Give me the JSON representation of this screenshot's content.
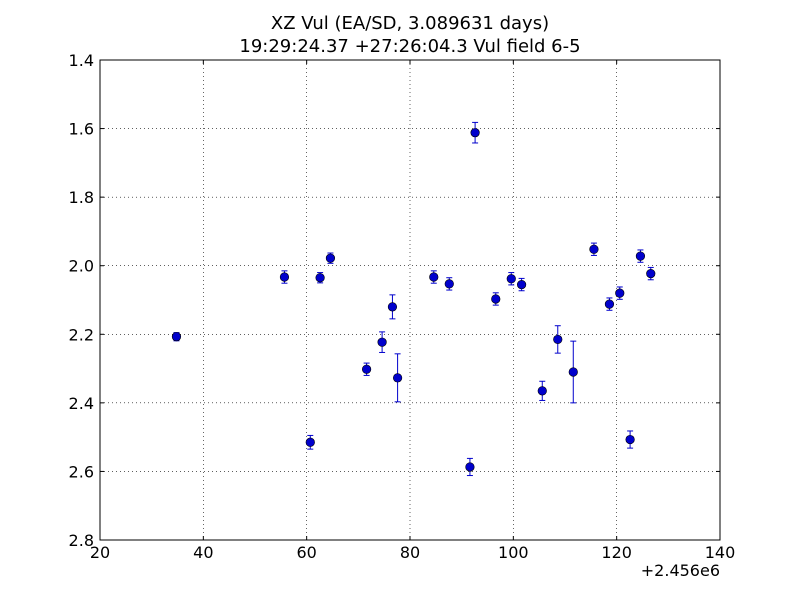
{
  "chart_data": {
    "type": "scatter",
    "title_line1": "XZ Vul (EA/SD, 3.089631 days)",
    "title_line2": "19:29:24.37 +27:26:04.3 Vul field 6-5",
    "xlabel": "",
    "ylabel": "",
    "x_offset_label": "+2.456e6",
    "xlim": [
      20,
      140
    ],
    "ylim": [
      1.4,
      2.8
    ],
    "y_inverted": true,
    "grid": true,
    "x_ticks": [
      "20",
      "40",
      "60",
      "80",
      "100",
      "120",
      "140"
    ],
    "y_ticks": [
      "1.4",
      "1.6",
      "1.8",
      "2.0",
      "2.2",
      "2.4",
      "2.6",
      "2.8"
    ],
    "marker_color": "#0000cc",
    "points": [
      {
        "x": 34.8,
        "y": 2.207,
        "err": 0.012
      },
      {
        "x": 55.7,
        "y": 2.033,
        "err": 0.018
      },
      {
        "x": 60.7,
        "y": 2.515,
        "err": 0.02
      },
      {
        "x": 62.6,
        "y": 2.035,
        "err": 0.015
      },
      {
        "x": 64.6,
        "y": 1.978,
        "err": 0.015
      },
      {
        "x": 71.6,
        "y": 2.302,
        "err": 0.018
      },
      {
        "x": 74.6,
        "y": 2.223,
        "err": 0.03
      },
      {
        "x": 76.6,
        "y": 2.12,
        "err": 0.035
      },
      {
        "x": 77.6,
        "y": 2.327,
        "err": 0.07
      },
      {
        "x": 84.6,
        "y": 2.033,
        "err": 0.018
      },
      {
        "x": 87.6,
        "y": 2.053,
        "err": 0.018
      },
      {
        "x": 91.6,
        "y": 2.587,
        "err": 0.025
      },
      {
        "x": 92.6,
        "y": 1.612,
        "err": 0.03
      },
      {
        "x": 96.6,
        "y": 2.097,
        "err": 0.018
      },
      {
        "x": 99.6,
        "y": 2.038,
        "err": 0.018
      },
      {
        "x": 101.6,
        "y": 2.055,
        "err": 0.018
      },
      {
        "x": 105.6,
        "y": 2.365,
        "err": 0.028
      },
      {
        "x": 108.6,
        "y": 2.215,
        "err": 0.04
      },
      {
        "x": 111.6,
        "y": 2.31,
        "err": 0.09
      },
      {
        "x": 115.6,
        "y": 1.952,
        "err": 0.018
      },
      {
        "x": 118.6,
        "y": 2.112,
        "err": 0.018
      },
      {
        "x": 120.6,
        "y": 2.08,
        "err": 0.018
      },
      {
        "x": 122.6,
        "y": 2.507,
        "err": 0.025
      },
      {
        "x": 124.6,
        "y": 1.972,
        "err": 0.018
      },
      {
        "x": 126.6,
        "y": 2.023,
        "err": 0.018
      }
    ]
  }
}
